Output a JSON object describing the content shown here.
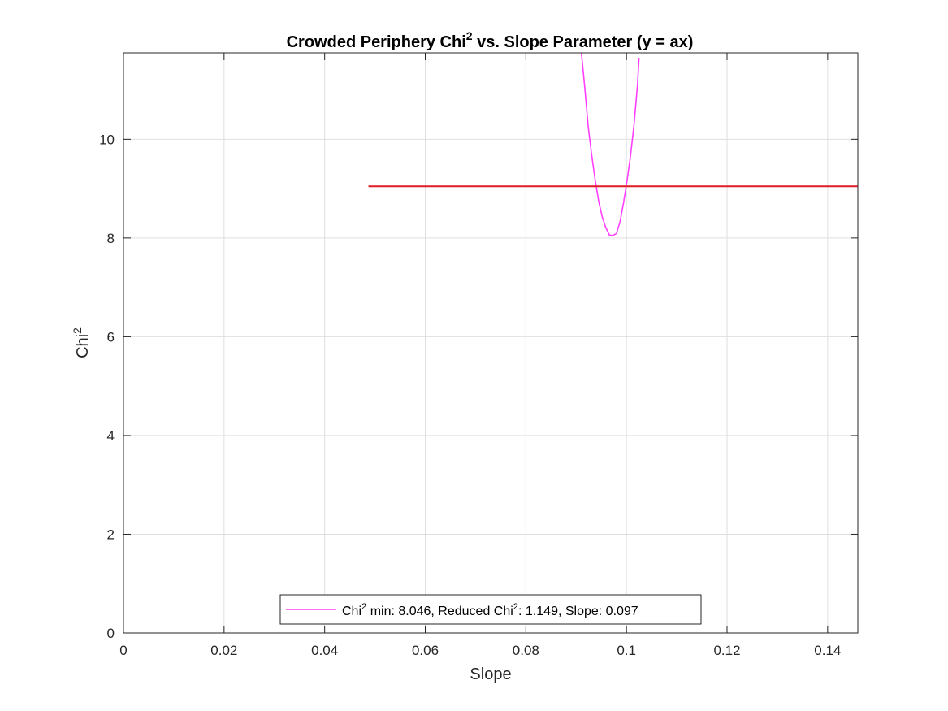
{
  "chart_data": {
    "type": "line",
    "title": {
      "pre": "Crowded Periphery Chi",
      "sup": "2",
      "post": " vs. Slope Parameter (y = ax)"
    },
    "xlabel": "Slope",
    "ylabel": {
      "pre": "Chi",
      "sup": "2"
    },
    "xlim": [
      0,
      0.146
    ],
    "ylim": [
      0,
      11.75
    ],
    "xticks": [
      0,
      0.02,
      0.04,
      0.06,
      0.08,
      0.1,
      0.12,
      0.14
    ],
    "xtick_labels": [
      "0",
      "0.02",
      "0.04",
      "0.06",
      "0.08",
      "0.1",
      "0.12",
      "0.14"
    ],
    "yticks": [
      0,
      2,
      4,
      6,
      8,
      10
    ],
    "ytick_labels": [
      "0",
      "2",
      "4",
      "6",
      "8",
      "10"
    ],
    "grid": true,
    "legend_position": "bottom-center",
    "series": [
      {
        "name": {
          "p1": "Chi",
          "s1": "2",
          "p2": " min: 8.046, Reduced Chi",
          "s2": "2",
          "p3": ": 1.149, Slope: 0.097"
        },
        "color": "#ff40ff",
        "x": [
          0.091,
          0.0917,
          0.0924,
          0.0931,
          0.0938,
          0.0945,
          0.0952,
          0.0959,
          0.0966,
          0.0973,
          0.098,
          0.0987,
          0.0994,
          0.1001,
          0.1008,
          0.1015,
          0.1022,
          0.1025
        ],
        "y": [
          11.8,
          11.06,
          10.25,
          9.67,
          9.16,
          8.73,
          8.42,
          8.21,
          8.06,
          8.05,
          8.09,
          8.32,
          8.7,
          9.15,
          9.66,
          10.29,
          11.11,
          11.65
        ]
      },
      {
        "color": "#e01b24",
        "x": [
          0.0487,
          0.146
        ],
        "y": [
          9.046,
          9.046
        ]
      }
    ]
  }
}
